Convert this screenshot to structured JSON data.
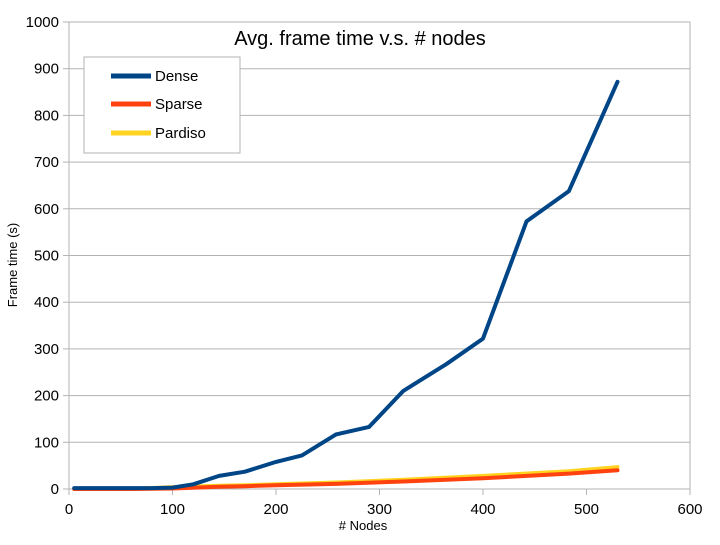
{
  "chart_data": {
    "type": "line",
    "title": "Avg. frame time v.s. # nodes",
    "xlabel": "# Nodes",
    "ylabel": "Frame time (s)",
    "xlim": [
      0,
      600
    ],
    "ylim": [
      0,
      1000
    ],
    "x_ticks": [
      0,
      100,
      200,
      300,
      400,
      500,
      600
    ],
    "y_ticks": [
      0,
      100,
      200,
      300,
      400,
      500,
      600,
      700,
      800,
      900,
      1000
    ],
    "grid": true,
    "legend_position": "top-left",
    "series": [
      {
        "name": "Dense",
        "color": "#004586",
        "x": [
          5,
          40,
          60,
          80,
          100,
          120,
          145,
          170,
          200,
          225,
          258,
          290,
          323,
          365,
          400,
          442,
          483,
          530
        ],
        "y": [
          2,
          2,
          2,
          2,
          3,
          10,
          28,
          37,
          58,
          72,
          117,
          133,
          210,
          268,
          322,
          573,
          638,
          872
        ]
      },
      {
        "name": "Sparse",
        "color": "#ff420e",
        "x": [
          5,
          60,
          100,
          145,
          170,
          200,
          258,
          323,
          400,
          483,
          530
        ],
        "y": [
          0,
          0,
          1,
          5,
          6,
          8,
          11,
          16,
          23,
          33,
          40
        ]
      },
      {
        "name": "Pardiso",
        "color": "#ffd320",
        "x": [
          5,
          60,
          100,
          145,
          170,
          200,
          258,
          323,
          400,
          483,
          530
        ],
        "y": [
          0,
          0,
          4,
          7,
          8,
          10,
          14,
          20,
          28,
          38,
          47
        ]
      }
    ]
  }
}
